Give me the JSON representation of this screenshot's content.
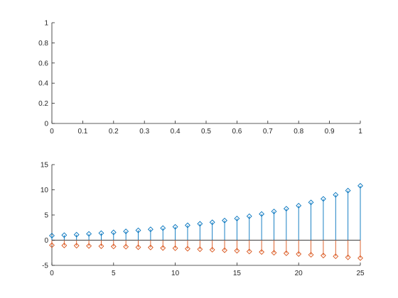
{
  "colors": {
    "background": "#ffffff",
    "axes": "#262626",
    "series1": "#0072bd",
    "series2": "#d95319",
    "baseline": "#000000"
  },
  "chart_data": [
    {
      "type": "line",
      "title": "",
      "xlabel": "",
      "ylabel": "",
      "xlim": [
        0,
        1
      ],
      "ylim": [
        0,
        1
      ],
      "xticks": [
        0,
        0.1,
        0.2,
        0.3,
        0.4,
        0.5,
        0.6,
        0.7,
        0.8,
        0.9,
        1
      ],
      "xtick_labels": [
        "0",
        "0.1",
        "0.2",
        "0.3",
        "0.4",
        "0.5",
        "0.6",
        "0.7",
        "0.8",
        "0.9",
        "1"
      ],
      "yticks": [
        0,
        0.2,
        0.4,
        0.6,
        0.8,
        1
      ],
      "ytick_labels": [
        "0",
        "0.2",
        "0.4",
        "0.6",
        "0.8",
        "1"
      ],
      "grid": false,
      "series": []
    },
    {
      "type": "stem",
      "title": "",
      "xlabel": "",
      "ylabel": "",
      "xlim": [
        0,
        25
      ],
      "ylim": [
        -5,
        15
      ],
      "xticks": [
        0,
        5,
        10,
        15,
        20,
        25
      ],
      "xtick_labels": [
        "0",
        "5",
        "10",
        "15",
        "20",
        "25"
      ],
      "yticks": [
        -5,
        0,
        5,
        10,
        15
      ],
      "ytick_labels": [
        "-5",
        "0",
        "5",
        "10",
        "15"
      ],
      "grid": false,
      "marker": "diamond",
      "x": [
        0,
        1,
        2,
        3,
        4,
        5,
        6,
        7,
        8,
        9,
        10,
        11,
        12,
        13,
        14,
        15,
        16,
        17,
        18,
        19,
        20,
        21,
        22,
        23,
        24,
        25
      ],
      "series": [
        {
          "values": [
            0.9,
            1.0,
            1.1,
            1.25,
            1.4,
            1.55,
            1.75,
            1.95,
            2.15,
            2.4,
            2.65,
            2.95,
            3.25,
            3.55,
            3.9,
            4.3,
            4.75,
            5.2,
            5.7,
            6.25,
            6.85,
            7.5,
            8.2,
            9.0,
            9.85,
            10.8
          ]
        },
        {
          "values": [
            -1.0,
            -1.05,
            -1.1,
            -1.15,
            -1.2,
            -1.25,
            -1.3,
            -1.4,
            -1.45,
            -1.55,
            -1.6,
            -1.7,
            -1.8,
            -1.9,
            -2.0,
            -2.1,
            -2.25,
            -2.35,
            -2.5,
            -2.6,
            -2.75,
            -2.9,
            -3.05,
            -3.2,
            -3.4,
            -3.55
          ]
        }
      ]
    }
  ]
}
